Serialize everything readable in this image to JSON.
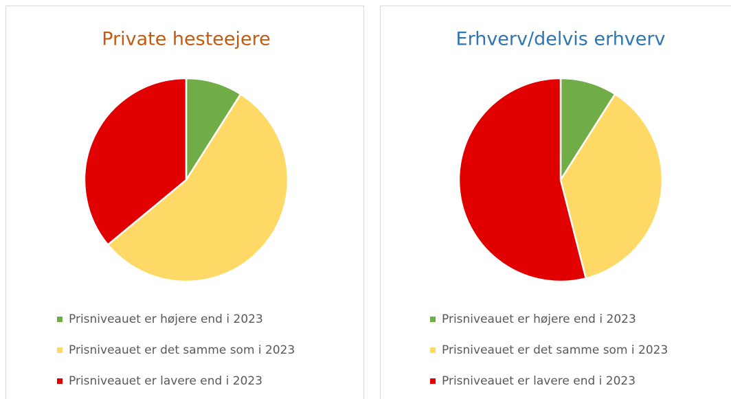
{
  "chart_data": [
    {
      "type": "pie",
      "title": "Private hesteejere",
      "title_color": "#c55a11",
      "categories": [
        "Prisniveauet er højere end i 2023",
        "Prisniveauet er det samme som i 2023",
        "Prisniveauet er lavere end i 2023"
      ],
      "values": [
        9,
        55,
        36
      ],
      "colors": [
        "#70ad47",
        "#ffd966",
        "#e00000"
      ]
    },
    {
      "type": "pie",
      "title": "Erhverv/delvis erhverv",
      "title_color": "#2e75b6",
      "categories": [
        "Prisniveauet er højere end i 2023",
        "Prisniveauet er det samme som i 2023",
        "Prisniveauet er lavere end i 2023"
      ],
      "values": [
        9,
        37,
        54
      ],
      "colors": [
        "#70ad47",
        "#ffd966",
        "#e00000"
      ]
    }
  ]
}
